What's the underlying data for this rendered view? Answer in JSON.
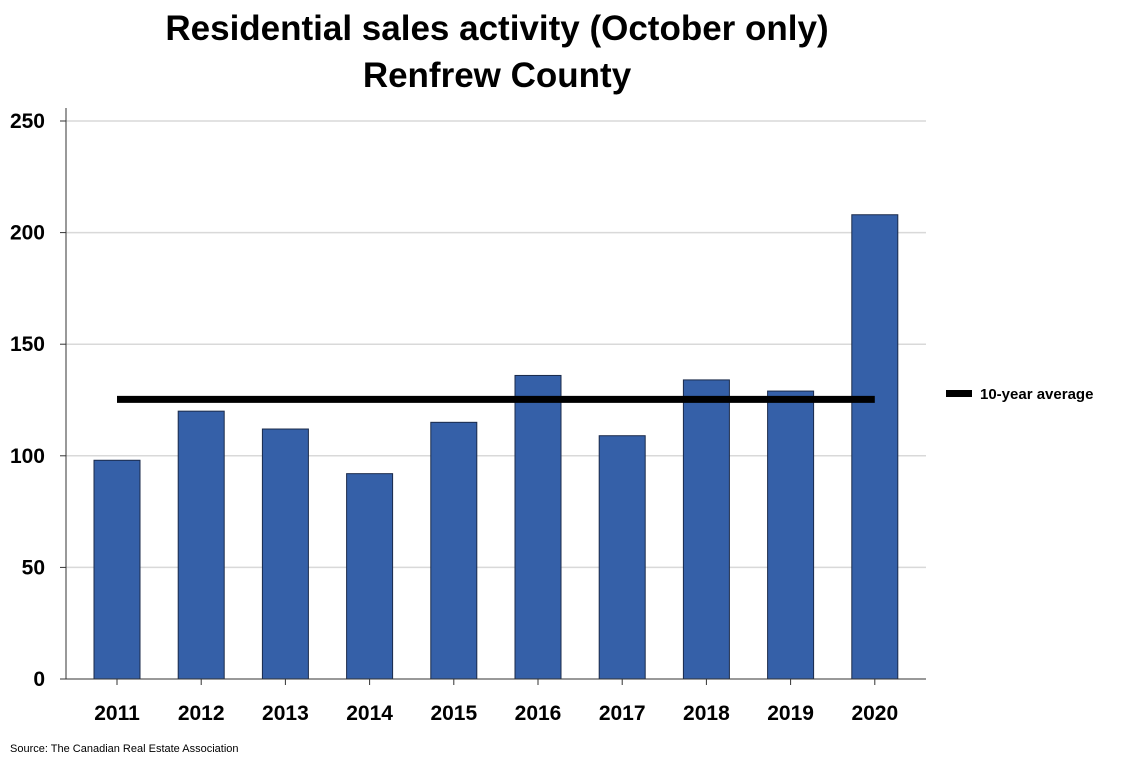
{
  "chart_data": {
    "type": "bar",
    "title": "Residential sales activity (October only)",
    "subtitle": "Renfrew County",
    "categories": [
      "2011",
      "2012",
      "2013",
      "2014",
      "2015",
      "2016",
      "2017",
      "2018",
      "2019",
      "2020"
    ],
    "series": [
      {
        "values": [
          98,
          120,
          112,
          92,
          115,
          136,
          109,
          134,
          129,
          208
        ],
        "color": "#3560a8"
      }
    ],
    "reference_line": {
      "name": "10-year average",
      "value": 125.3,
      "color": "#000000"
    },
    "ylim": [
      0,
      250
    ],
    "yticks": [
      0,
      50,
      100,
      150,
      200,
      250
    ],
    "xlabel": "",
    "ylabel": "",
    "grid": "horizontal",
    "legend_placement": "right",
    "source": "Source: The Canadian Real Estate Association"
  }
}
